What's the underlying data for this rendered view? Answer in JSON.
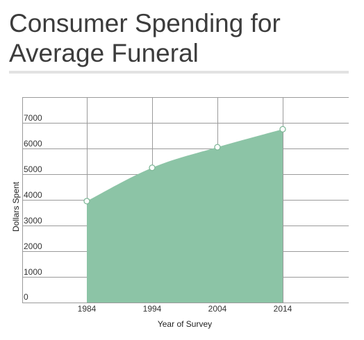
{
  "chart_data": {
    "type": "area",
    "title": "Consumer Spending for Average Funeral",
    "xlabel": "Year of Survey",
    "ylabel": "Dollars Spent",
    "categories": [
      "1984",
      "1994",
      "2004",
      "2014"
    ],
    "y_ticks": [
      "0",
      "1000",
      "2000",
      "3000",
      "4000",
      "5000",
      "6000",
      "7000"
    ],
    "ylim": [
      0,
      8000
    ],
    "series": [
      {
        "values": [
          3950,
          5250,
          6050,
          6750
        ]
      }
    ],
    "grid": true,
    "legend": "none",
    "colors": {
      "area": "#8cc4a6",
      "marker_stroke": "#7fb898",
      "grid": "#9a9a9a",
      "title": "#3c3c3c"
    }
  }
}
